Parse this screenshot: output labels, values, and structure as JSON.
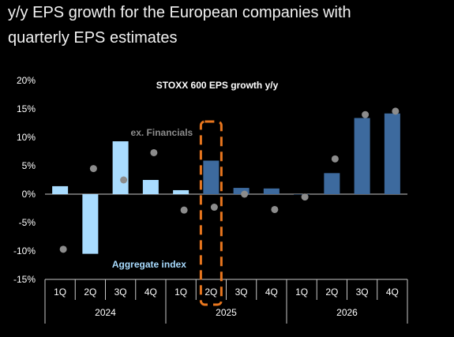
{
  "heading": {
    "line1": "y/y EPS growth for the European companies with",
    "line2": "quarterly EPS estimates"
  },
  "colors": {
    "background": "#000000",
    "light_bar": "#a9dcff",
    "dark_bar": "#3d6a9e",
    "dot": "#8c8c8c",
    "highlight": "#e8761e",
    "axis": "#c8c8c8"
  },
  "chart_data": {
    "type": "bar",
    "title": "STOXX 600 EPS growth y/y",
    "categories": [
      "1Q",
      "2Q",
      "3Q",
      "4Q",
      "1Q",
      "2Q",
      "3Q",
      "4Q",
      "1Q",
      "2Q",
      "3Q",
      "4Q"
    ],
    "groups": [
      {
        "label": "2024",
        "count": 4
      },
      {
        "label": "2025",
        "count": 4
      },
      {
        "label": "2026",
        "count": 4
      }
    ],
    "series": [
      {
        "name": "Aggregate index",
        "type": "bar",
        "values": [
          1.4,
          -10.5,
          9.3,
          2.5,
          0.7,
          5.9,
          1.1,
          1.0,
          0.0,
          3.7,
          13.4,
          14.2
        ],
        "colors": [
          "#a9dcff",
          "#a9dcff",
          "#a9dcff",
          "#a9dcff",
          "#a9dcff",
          "#3d6a9e",
          "#3d6a9e",
          "#3d6a9e",
          "#3d6a9e",
          "#3d6a9e",
          "#3d6a9e",
          "#3d6a9e"
        ]
      },
      {
        "name": "ex. Financials",
        "type": "scatter",
        "values": [
          -9.7,
          4.5,
          2.5,
          7.3,
          -2.8,
          -2.3,
          0.0,
          -2.7,
          -0.5,
          6.2,
          14.0,
          14.6
        ]
      }
    ],
    "highlight_index": 5,
    "ylim": [
      -15,
      20
    ],
    "yticks": [
      -15,
      -10,
      -5,
      0,
      5,
      10,
      15,
      20
    ],
    "ytick_labels": [
      "-15%",
      "-10%",
      "-5%",
      "0%",
      "5%",
      "10%",
      "15%",
      "20%"
    ],
    "annotations": [
      {
        "text": "ex. Financials",
        "series": "ex. Financials"
      },
      {
        "text": "Aggregate index",
        "series": "Aggregate index"
      }
    ]
  }
}
